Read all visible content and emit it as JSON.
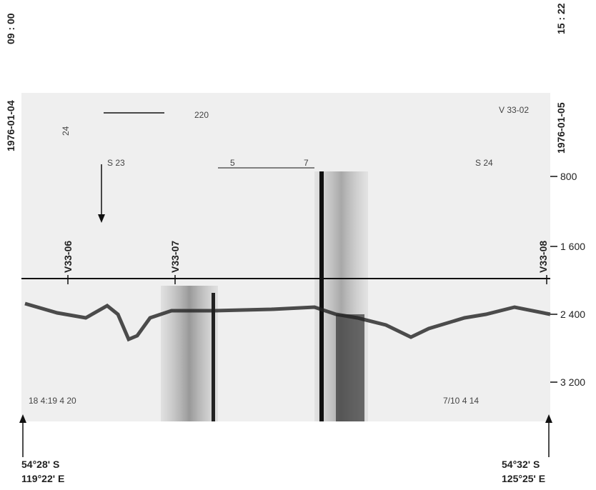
{
  "header": {
    "left_time": "09 : 00",
    "left_date": "1976-01-04",
    "right_time": "15 : 22",
    "right_date": "1976-01-05"
  },
  "depth_labels": [
    "800",
    "1 600",
    "2 400",
    "3 200"
  ],
  "stations": [
    "V33-06",
    "V33-07",
    "V33-08"
  ],
  "annotations": [
    "24",
    "S 23",
    "5",
    "7",
    "S 24",
    "220",
    "V 33-02",
    "18 4:19 4 20",
    "7/10 4 14"
  ],
  "start_position": {
    "lat": "54°28' S",
    "lon": "119°22' E"
  },
  "end_position": {
    "lat": "54°32' S",
    "lon": "125°25' E"
  }
}
